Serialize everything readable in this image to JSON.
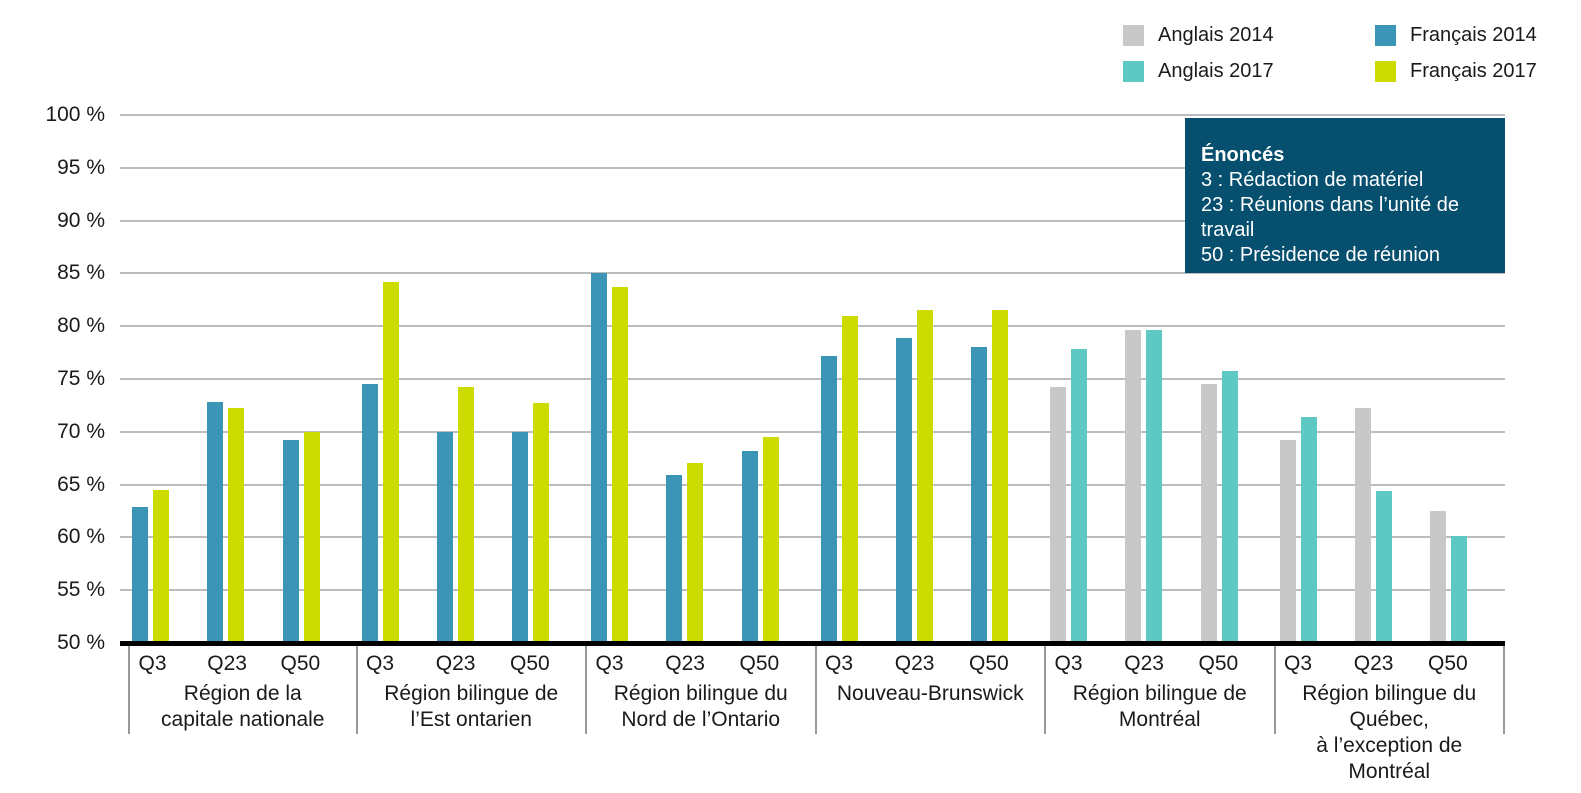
{
  "legend": [
    {
      "label": "Anglais 2014",
      "color": "#c8c8c8"
    },
    {
      "label": "Anglais 2017",
      "color": "#5dc9c2"
    },
    {
      "label": "Français 2014",
      "color": "#3a96b4"
    },
    {
      "label": "Français 2017",
      "color": "#ccdb00"
    }
  ],
  "note_box": {
    "title": "Énoncés",
    "lines": [
      "3 : Rédaction de matériel",
      "23 : Réunions dans l’unité de travail",
      "50 : Présidence de réunion"
    ],
    "bg_color": "#074f6e"
  },
  "chart_data": {
    "type": "bar",
    "ylim": [
      50,
      100
    ],
    "ytick_step": 5,
    "ytick_labels": [
      "100 %",
      "95 %",
      "90 %",
      "85 %",
      "80 %",
      "75 %",
      "70 %",
      "65 %",
      "60 %",
      "55 %",
      "50 %"
    ],
    "grid": true,
    "legend_position": "top-right",
    "question_labels": [
      "Q3",
      "Q23",
      "Q50"
    ],
    "regions": [
      {
        "name_lines": [
          "Région de la",
          "capitale nationale"
        ],
        "series": [
          "Français 2014",
          "Français 2017"
        ],
        "groups": [
          {
            "label": "Q3",
            "values": [
              62.9,
              64.5
            ]
          },
          {
            "label": "Q23",
            "values": [
              72.8,
              72.3
            ]
          },
          {
            "label": "Q50",
            "values": [
              69.2,
              70.0
            ]
          }
        ]
      },
      {
        "name_lines": [
          "Région bilingue de",
          "l’Est ontarien"
        ],
        "series": [
          "Français 2014",
          "Français 2017"
        ],
        "groups": [
          {
            "label": "Q3",
            "values": [
              74.5,
              84.2
            ]
          },
          {
            "label": "Q23",
            "values": [
              70.0,
              74.2
            ]
          },
          {
            "label": "Q50",
            "values": [
              70.0,
              72.7
            ]
          }
        ]
      },
      {
        "name_lines": [
          "Région bilingue du",
          "Nord de l’Ontario"
        ],
        "series": [
          "Français 2014",
          "Français 2017"
        ],
        "groups": [
          {
            "label": "Q3",
            "values": [
              85.0,
              83.7
            ]
          },
          {
            "label": "Q23",
            "values": [
              65.9,
              67.0
            ]
          },
          {
            "label": "Q50",
            "values": [
              68.2,
              69.5
            ]
          }
        ]
      },
      {
        "name_lines": [
          "Nouveau-Brunswick"
        ],
        "series": [
          "Français 2014",
          "Français 2017"
        ],
        "groups": [
          {
            "label": "Q3",
            "values": [
              77.2,
              81.0
            ]
          },
          {
            "label": "Q23",
            "values": [
              78.9,
              81.5
            ]
          },
          {
            "label": "Q50",
            "values": [
              78.0,
              81.5
            ]
          }
        ]
      },
      {
        "name_lines": [
          "Région bilingue de Montréal"
        ],
        "series": [
          "Anglais 2014",
          "Anglais 2017"
        ],
        "groups": [
          {
            "label": "Q3",
            "values": [
              74.2,
              77.8
            ]
          },
          {
            "label": "Q23",
            "values": [
              79.6,
              79.6
            ]
          },
          {
            "label": "Q50",
            "values": [
              74.5,
              75.8
            ]
          }
        ]
      },
      {
        "name_lines": [
          "Région bilingue du Québec,",
          "à l’exception de Montréal"
        ],
        "series": [
          "Anglais 2014",
          "Anglais 2017"
        ],
        "groups": [
          {
            "label": "Q3",
            "values": [
              69.2,
              71.4
            ]
          },
          {
            "label": "Q23",
            "values": [
              72.3,
              64.4
            ]
          },
          {
            "label": "Q50",
            "values": [
              62.5,
              60.1
            ]
          }
        ]
      }
    ]
  }
}
